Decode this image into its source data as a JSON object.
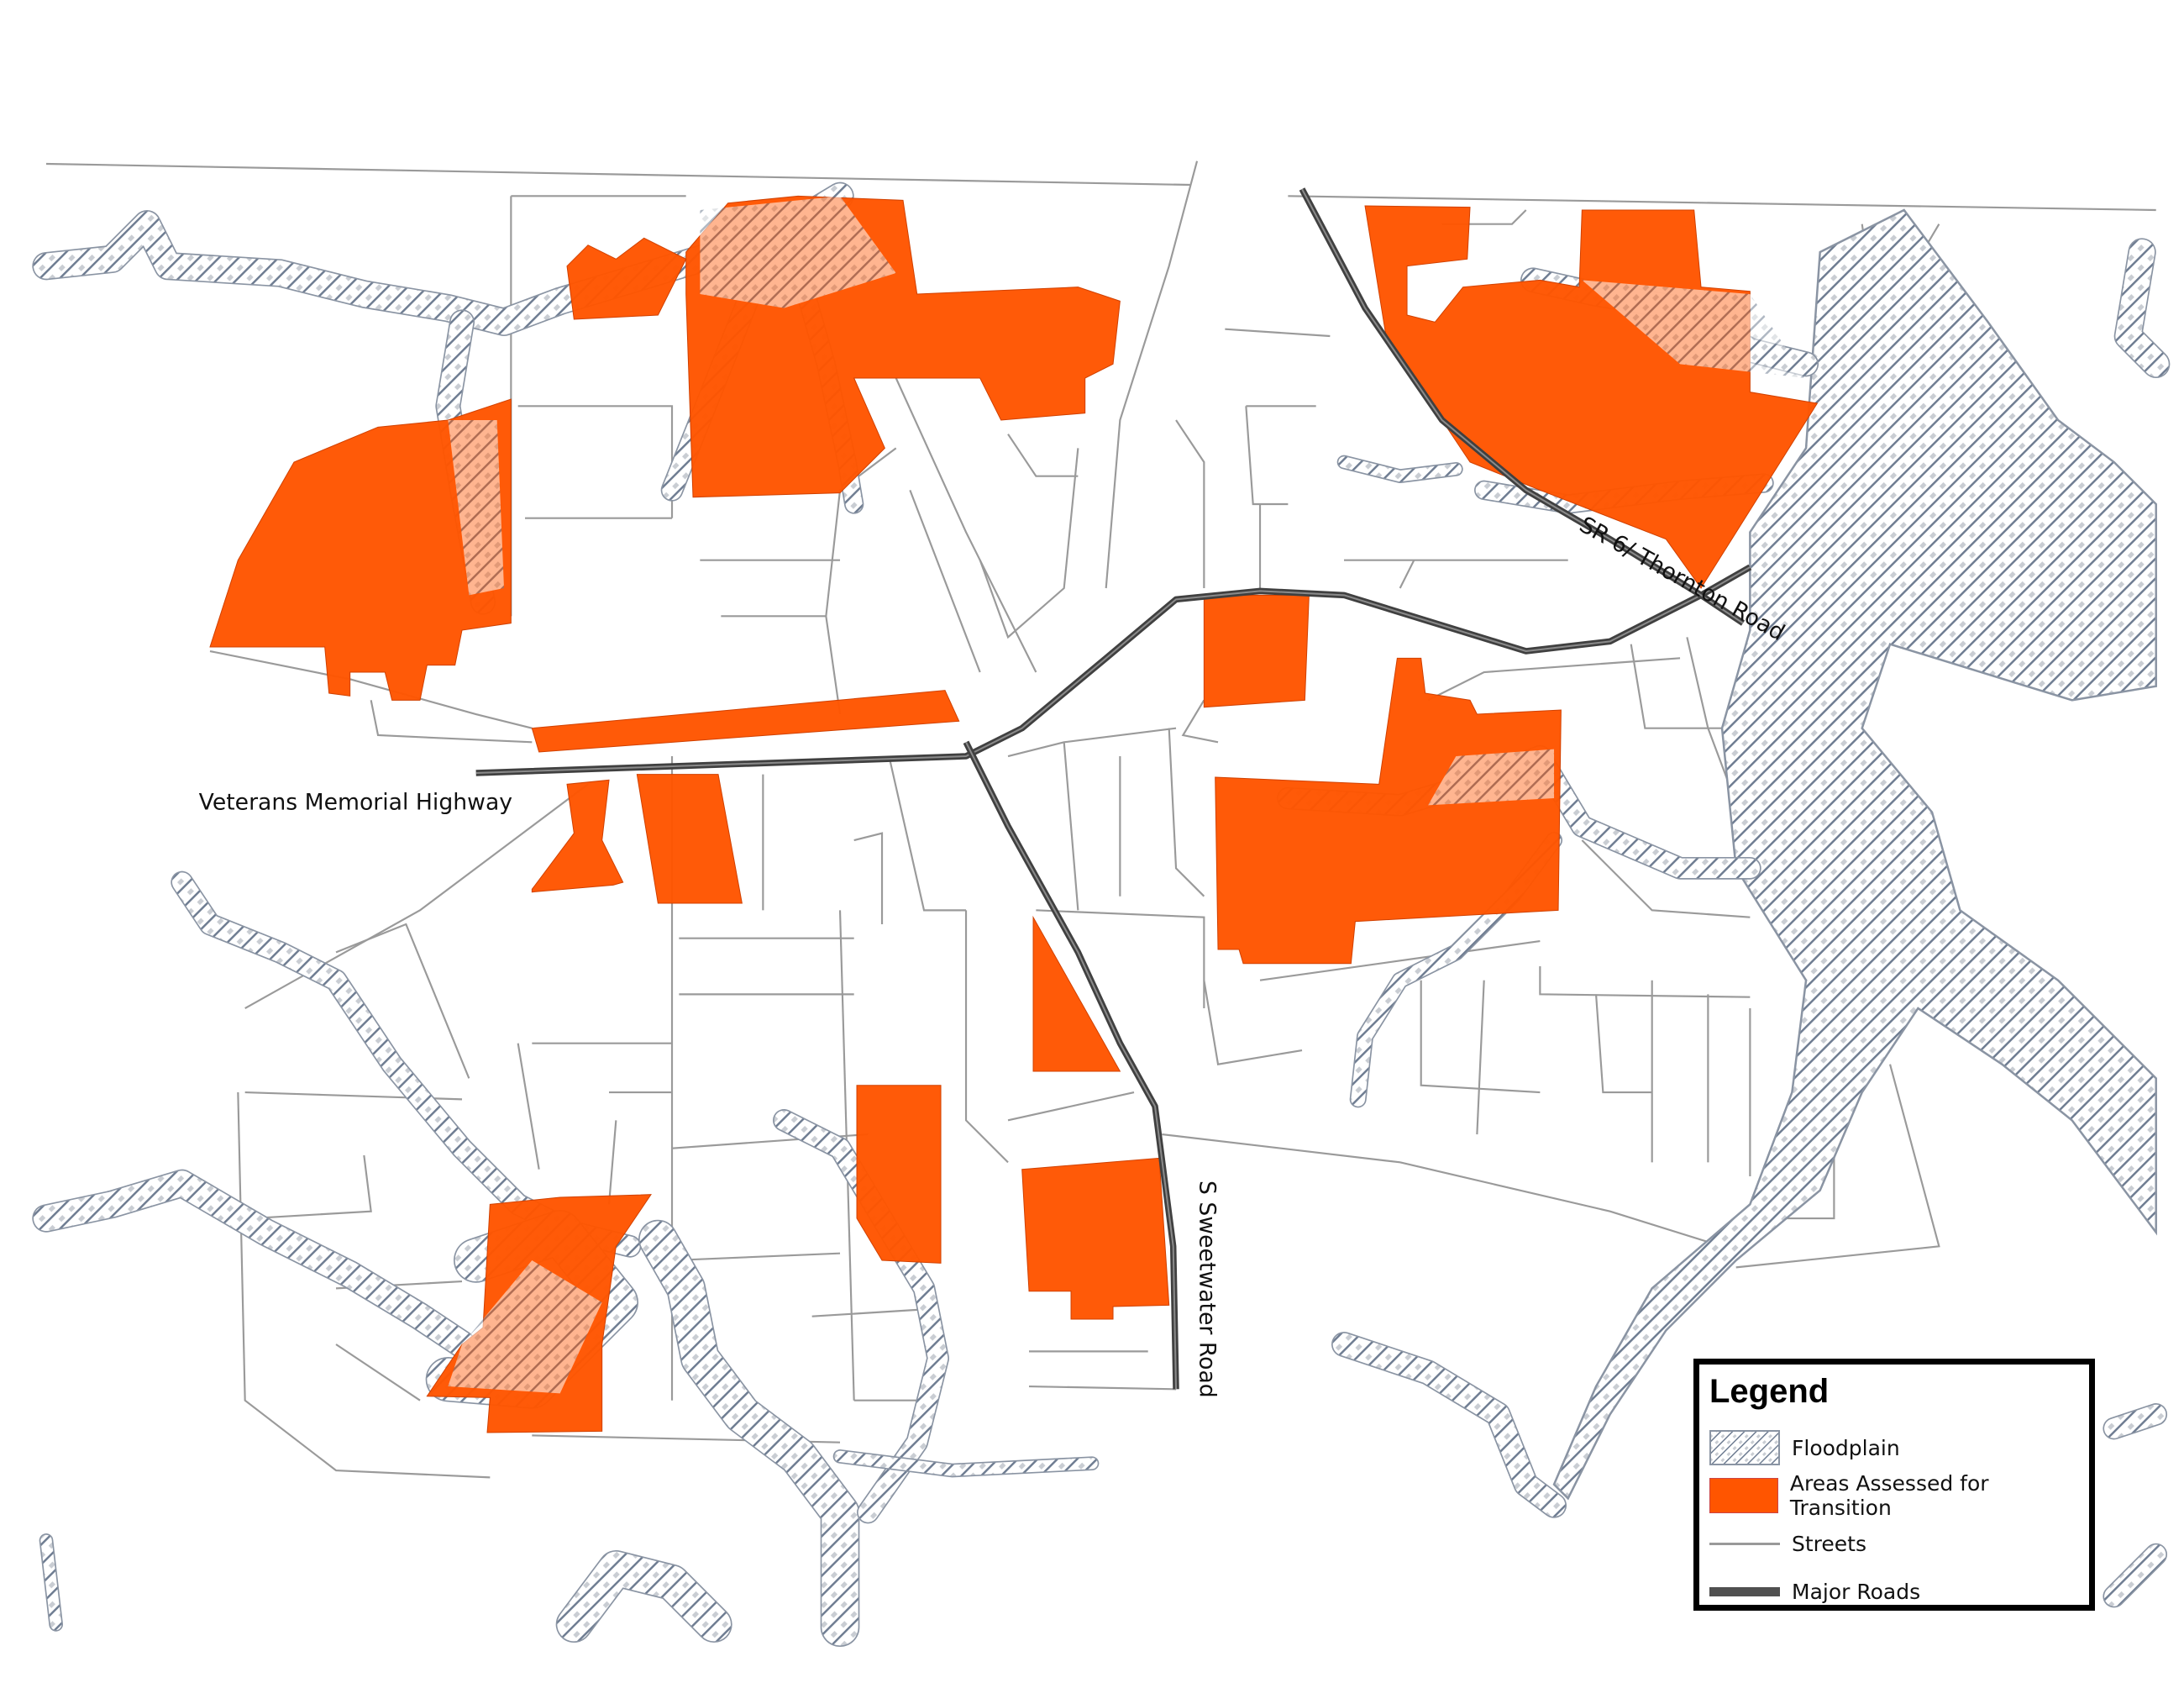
{
  "colors": {
    "transition_area": "#FF5500",
    "floodplain_hatch": "#6f7d92",
    "floodplain_fill": "#c9cdd3",
    "streets": "#999999",
    "major_roads": "#505050"
  },
  "labels": {
    "veterans": "Veterans Memorial Highway",
    "thornton": "SR 6/ Thornton Road",
    "sweetwater": "S Sweetwater Road"
  },
  "legend": {
    "title": "Legend",
    "items": [
      {
        "label": "Floodplain",
        "symbol": "hatched-fill"
      },
      {
        "label": "Areas Assessed for Transition",
        "symbol": "orange-fill"
      },
      {
        "label": "Streets",
        "symbol": "thin-gray-line"
      },
      {
        "label": "Major Roads",
        "symbol": "thick-dark-line"
      }
    ]
  }
}
